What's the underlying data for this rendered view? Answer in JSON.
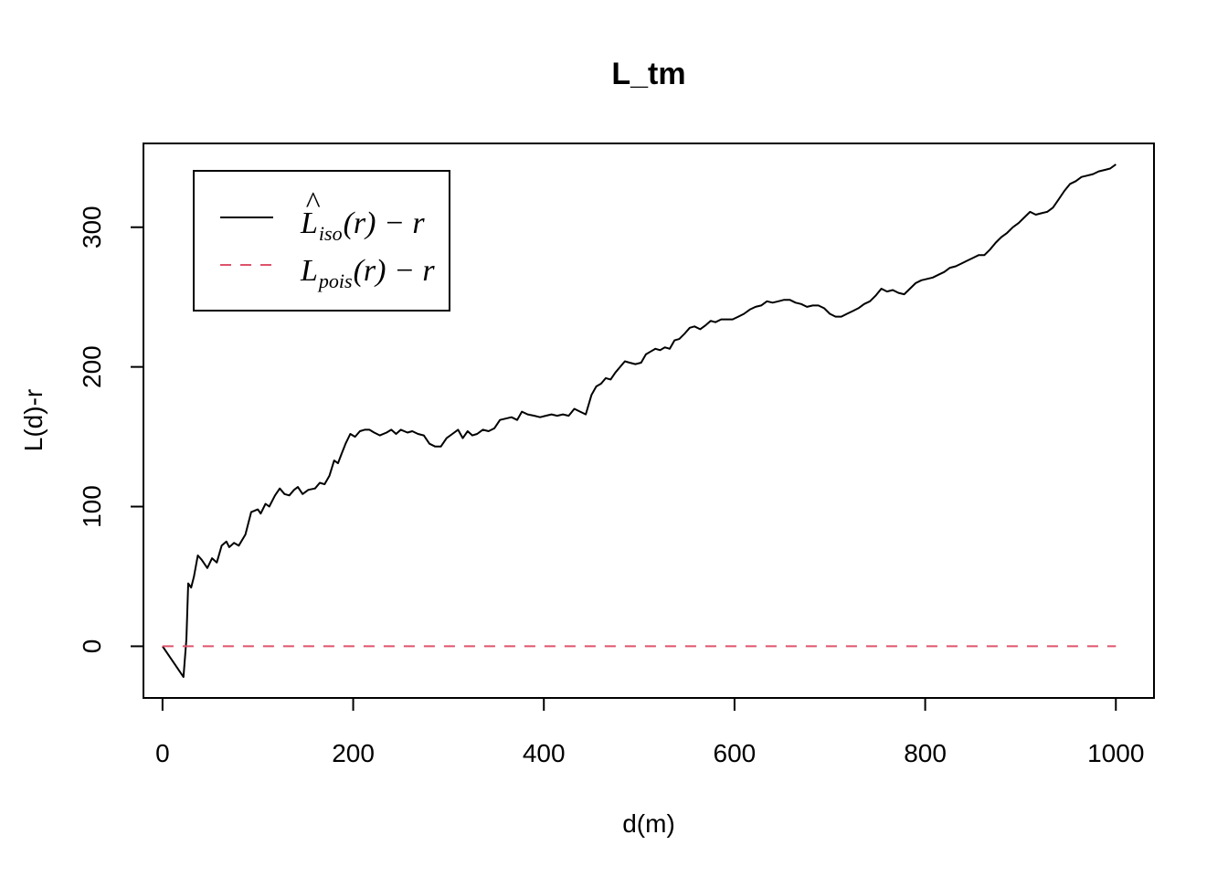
{
  "chart_data": {
    "type": "line",
    "title": "L_tm",
    "xlabel": "d(m)",
    "ylabel": "L(d)-r",
    "xlim": [
      -20,
      1040
    ],
    "ylim": [
      -37,
      360
    ],
    "xticks": [
      0,
      200,
      400,
      600,
      800,
      1000
    ],
    "yticks": [
      0,
      100,
      200,
      300
    ],
    "xtick_labels": [
      "0",
      "200",
      "400",
      "600",
      "800",
      "1000"
    ],
    "ytick_labels": [
      "0",
      "100",
      "200",
      "300"
    ],
    "legend": {
      "position": "top-left",
      "entries": [
        {
          "id": "iso",
          "main": "L",
          "hat": "^",
          "sub": "iso",
          "suffix": "(r) − r",
          "color": "#000000",
          "dash": "solid"
        },
        {
          "id": "pois",
          "main": "L",
          "hat": "",
          "sub": "pois",
          "suffix": "(r) − r",
          "color": "#DF536B",
          "dash": "dashed"
        }
      ]
    },
    "series": [
      {
        "id": "iso",
        "color": "#000000",
        "dash": "solid",
        "points": [
          [
            0,
            0
          ],
          [
            10,
            -10
          ],
          [
            22,
            -22
          ],
          [
            25,
            5
          ],
          [
            27,
            45
          ],
          [
            30,
            42
          ],
          [
            33,
            50
          ],
          [
            37,
            65
          ],
          [
            41,
            62
          ],
          [
            47,
            56
          ],
          [
            52,
            63
          ],
          [
            57,
            60
          ],
          [
            62,
            72
          ],
          [
            67,
            75
          ],
          [
            70,
            71
          ],
          [
            75,
            74
          ],
          [
            80,
            72
          ],
          [
            87,
            80
          ],
          [
            93,
            96
          ],
          [
            100,
            98
          ],
          [
            103,
            95
          ],
          [
            108,
            102
          ],
          [
            112,
            100
          ],
          [
            118,
            108
          ],
          [
            123,
            113
          ],
          [
            128,
            109
          ],
          [
            133,
            108
          ],
          [
            138,
            112
          ],
          [
            142,
            114
          ],
          [
            147,
            109
          ],
          [
            153,
            112
          ],
          [
            160,
            113
          ],
          [
            165,
            117
          ],
          [
            170,
            116
          ],
          [
            175,
            122
          ],
          [
            180,
            133
          ],
          [
            184,
            131
          ],
          [
            188,
            138
          ],
          [
            192,
            145
          ],
          [
            197,
            152
          ],
          [
            202,
            150
          ],
          [
            207,
            154
          ],
          [
            212,
            155
          ],
          [
            217,
            155
          ],
          [
            222,
            153
          ],
          [
            228,
            151
          ],
          [
            235,
            153
          ],
          [
            240,
            155
          ],
          [
            245,
            152
          ],
          [
            250,
            155
          ],
          [
            257,
            153
          ],
          [
            262,
            154
          ],
          [
            268,
            152
          ],
          [
            274,
            151
          ],
          [
            280,
            145
          ],
          [
            286,
            143
          ],
          [
            292,
            143
          ],
          [
            298,
            149
          ],
          [
            304,
            152
          ],
          [
            310,
            155
          ],
          [
            315,
            149
          ],
          [
            320,
            154
          ],
          [
            325,
            151
          ],
          [
            330,
            152
          ],
          [
            336,
            155
          ],
          [
            342,
            154
          ],
          [
            348,
            156
          ],
          [
            354,
            162
          ],
          [
            360,
            163
          ],
          [
            366,
            164
          ],
          [
            372,
            162
          ],
          [
            377,
            168
          ],
          [
            383,
            166
          ],
          [
            390,
            165
          ],
          [
            396,
            164
          ],
          [
            402,
            165
          ],
          [
            408,
            166
          ],
          [
            414,
            165
          ],
          [
            420,
            166
          ],
          [
            426,
            165
          ],
          [
            432,
            170
          ],
          [
            438,
            168
          ],
          [
            444,
            166
          ],
          [
            450,
            180
          ],
          [
            455,
            186
          ],
          [
            460,
            188
          ],
          [
            465,
            192
          ],
          [
            470,
            191
          ],
          [
            475,
            196
          ],
          [
            480,
            200
          ],
          [
            485,
            204
          ],
          [
            490,
            203
          ],
          [
            496,
            202
          ],
          [
            502,
            203
          ],
          [
            507,
            209
          ],
          [
            512,
            211
          ],
          [
            517,
            213
          ],
          [
            522,
            212
          ],
          [
            527,
            214
          ],
          [
            532,
            213
          ],
          [
            537,
            219
          ],
          [
            542,
            220
          ],
          [
            548,
            224
          ],
          [
            553,
            228
          ],
          [
            558,
            229
          ],
          [
            564,
            227
          ],
          [
            570,
            230
          ],
          [
            575,
            233
          ],
          [
            580,
            232
          ],
          [
            586,
            234
          ],
          [
            592,
            234
          ],
          [
            598,
            234
          ],
          [
            604,
            236
          ],
          [
            610,
            238
          ],
          [
            616,
            241
          ],
          [
            622,
            243
          ],
          [
            628,
            244
          ],
          [
            634,
            247
          ],
          [
            640,
            246
          ],
          [
            646,
            247
          ],
          [
            652,
            248
          ],
          [
            658,
            248
          ],
          [
            664,
            246
          ],
          [
            670,
            245
          ],
          [
            676,
            243
          ],
          [
            682,
            244
          ],
          [
            688,
            244
          ],
          [
            694,
            242
          ],
          [
            700,
            238
          ],
          [
            706,
            236
          ],
          [
            712,
            236
          ],
          [
            718,
            238
          ],
          [
            724,
            240
          ],
          [
            730,
            242
          ],
          [
            736,
            245
          ],
          [
            742,
            247
          ],
          [
            748,
            251
          ],
          [
            754,
            256
          ],
          [
            760,
            254
          ],
          [
            766,
            255
          ],
          [
            772,
            253
          ],
          [
            778,
            252
          ],
          [
            784,
            256
          ],
          [
            790,
            260
          ],
          [
            796,
            262
          ],
          [
            802,
            263
          ],
          [
            808,
            264
          ],
          [
            814,
            266
          ],
          [
            820,
            268
          ],
          [
            826,
            271
          ],
          [
            832,
            272
          ],
          [
            838,
            274
          ],
          [
            844,
            276
          ],
          [
            850,
            278
          ],
          [
            856,
            280
          ],
          [
            862,
            280
          ],
          [
            868,
            284
          ],
          [
            874,
            289
          ],
          [
            880,
            293
          ],
          [
            886,
            296
          ],
          [
            892,
            300
          ],
          [
            898,
            303
          ],
          [
            904,
            307
          ],
          [
            910,
            311
          ],
          [
            916,
            309
          ],
          [
            922,
            310
          ],
          [
            928,
            311
          ],
          [
            934,
            314
          ],
          [
            940,
            320
          ],
          [
            946,
            326
          ],
          [
            952,
            331
          ],
          [
            958,
            333
          ],
          [
            964,
            336
          ],
          [
            970,
            337
          ],
          [
            976,
            338
          ],
          [
            982,
            340
          ],
          [
            988,
            341
          ],
          [
            994,
            342
          ],
          [
            1000,
            345
          ]
        ]
      },
      {
        "id": "pois",
        "color": "#DF536B",
        "dash": "dashed",
        "points": [
          [
            0,
            0
          ],
          [
            1000,
            0
          ]
        ]
      }
    ]
  }
}
